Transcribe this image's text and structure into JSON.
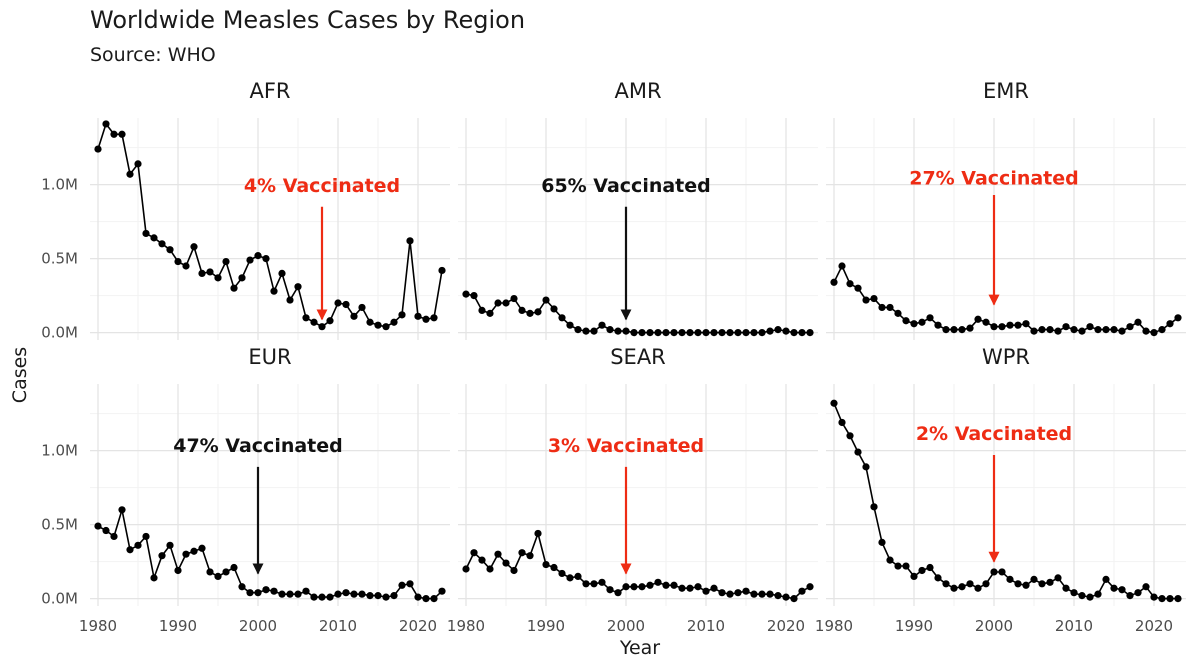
{
  "chart_data": {
    "type": "line",
    "title": "Worldwide Measles Cases by Region",
    "subtitle": "Source: WHO",
    "xlabel": "Year",
    "ylabel": "Cases",
    "xlim": [
      1979,
      2024
    ],
    "ylim": [
      -0.05,
      1.45
    ],
    "y_unit": "millions",
    "x_ticks": [
      1980,
      1990,
      2000,
      2010,
      2020
    ],
    "x_tick_labels": [
      "1980",
      "1990",
      "2000",
      "2010",
      "2020"
    ],
    "y_ticks": [
      0,
      0.5,
      1.0
    ],
    "y_tick_labels": [
      "0.0M",
      "0.5M",
      "1.0M"
    ],
    "years": [
      1980,
      1981,
      1982,
      1983,
      1984,
      1985,
      1986,
      1987,
      1988,
      1989,
      1990,
      1991,
      1992,
      1993,
      1994,
      1995,
      1996,
      1997,
      1998,
      1999,
      2000,
      2001,
      2002,
      2003,
      2004,
      2005,
      2006,
      2007,
      2008,
      2009,
      2010,
      2011,
      2012,
      2013,
      2014,
      2015,
      2016,
      2017,
      2018,
      2019,
      2020,
      2021,
      2022,
      2023
    ],
    "panels": [
      {
        "name": "AFR",
        "values": [
          1.24,
          1.41,
          1.34,
          1.34,
          1.07,
          1.14,
          0.67,
          0.64,
          0.6,
          0.56,
          0.48,
          0.45,
          0.58,
          0.4,
          0.41,
          0.37,
          0.48,
          0.3,
          0.37,
          0.49,
          0.52,
          0.5,
          0.28,
          0.4,
          0.22,
          0.31,
          0.1,
          0.07,
          0.04,
          0.08,
          0.2,
          0.19,
          0.11,
          0.17,
          0.07,
          0.05,
          0.04,
          0.07,
          0.12,
          0.62,
          0.11,
          0.09,
          0.1,
          0.42
        ],
        "annotation": {
          "label": "4% Vaccinated",
          "year": 2008,
          "color": "#ee2c14",
          "label_y": 0.95,
          "arrow_from": 0.85,
          "arrow_to": 0.09
        }
      },
      {
        "name": "AMR",
        "values": [
          0.26,
          0.25,
          0.15,
          0.13,
          0.2,
          0.2,
          0.23,
          0.15,
          0.13,
          0.14,
          0.22,
          0.16,
          0.1,
          0.05,
          0.02,
          0.01,
          0.01,
          0.05,
          0.02,
          0.01,
          0.01,
          0.0,
          0.0,
          0.0,
          0.0,
          0.0,
          0.0,
          0.0,
          0.0,
          0.0,
          0.0,
          0.0,
          0.0,
          0.0,
          0.0,
          0.0,
          0.0,
          0.0,
          0.01,
          0.02,
          0.01,
          0.0,
          0.0,
          0.0
        ],
        "annotation": {
          "label": "65% Vaccinated",
          "year": 2000,
          "color": "#111111",
          "label_y": 0.95,
          "arrow_from": 0.85,
          "arrow_to": 0.09
        }
      },
      {
        "name": "EMR",
        "values": [
          0.34,
          0.45,
          0.33,
          0.3,
          0.22,
          0.23,
          0.17,
          0.17,
          0.13,
          0.08,
          0.06,
          0.07,
          0.1,
          0.05,
          0.02,
          0.02,
          0.02,
          0.03,
          0.09,
          0.07,
          0.04,
          0.04,
          0.05,
          0.05,
          0.06,
          0.01,
          0.02,
          0.02,
          0.01,
          0.04,
          0.02,
          0.01,
          0.04,
          0.02,
          0.02,
          0.02,
          0.01,
          0.04,
          0.07,
          0.01,
          0.0,
          0.02,
          0.06,
          0.1
        ],
        "annotation": {
          "label": "27% Vaccinated",
          "year": 2000,
          "color": "#ee2c14",
          "label_y": 1.0,
          "arrow_from": 0.93,
          "arrow_to": 0.19
        }
      },
      {
        "name": "EUR",
        "values": [
          0.49,
          0.46,
          0.42,
          0.6,
          0.33,
          0.36,
          0.42,
          0.14,
          0.29,
          0.36,
          0.19,
          0.3,
          0.32,
          0.34,
          0.18,
          0.15,
          0.18,
          0.21,
          0.08,
          0.04,
          0.04,
          0.06,
          0.05,
          0.03,
          0.03,
          0.03,
          0.05,
          0.01,
          0.01,
          0.01,
          0.03,
          0.04,
          0.03,
          0.03,
          0.02,
          0.02,
          0.01,
          0.02,
          0.09,
          0.1,
          0.01,
          0.0,
          0.0,
          0.05
        ],
        "annotation": {
          "label": "47% Vaccinated",
          "year": 2000,
          "color": "#111111",
          "label_y": 0.99,
          "arrow_from": 0.89,
          "arrow_to": 0.17
        }
      },
      {
        "name": "SEAR",
        "values": [
          0.2,
          0.31,
          0.26,
          0.2,
          0.3,
          0.24,
          0.19,
          0.31,
          0.29,
          0.44,
          0.23,
          0.21,
          0.17,
          0.14,
          0.15,
          0.1,
          0.1,
          0.11,
          0.06,
          0.04,
          0.08,
          0.08,
          0.08,
          0.09,
          0.11,
          0.09,
          0.09,
          0.07,
          0.07,
          0.08,
          0.05,
          0.07,
          0.04,
          0.03,
          0.04,
          0.05,
          0.03,
          0.03,
          0.03,
          0.02,
          0.01,
          0.0,
          0.05,
          0.08
        ],
        "annotation": {
          "label": "3% Vaccinated",
          "year": 2000,
          "color": "#ee2c14",
          "label_y": 0.99,
          "arrow_from": 0.89,
          "arrow_to": 0.17
        }
      },
      {
        "name": "WPR",
        "values": [
          1.32,
          1.19,
          1.1,
          0.99,
          0.89,
          0.62,
          0.38,
          0.26,
          0.22,
          0.22,
          0.15,
          0.19,
          0.21,
          0.14,
          0.1,
          0.07,
          0.08,
          0.1,
          0.07,
          0.1,
          0.18,
          0.18,
          0.13,
          0.1,
          0.09,
          0.13,
          0.1,
          0.11,
          0.14,
          0.07,
          0.04,
          0.02,
          0.01,
          0.03,
          0.13,
          0.07,
          0.06,
          0.02,
          0.04,
          0.08,
          0.01,
          0.0,
          0.0,
          0.0
        ],
        "annotation": {
          "label": "2% Vaccinated",
          "year": 2000,
          "color": "#ee2c14",
          "label_y": 1.07,
          "arrow_from": 0.97,
          "arrow_to": 0.25
        }
      }
    ]
  }
}
